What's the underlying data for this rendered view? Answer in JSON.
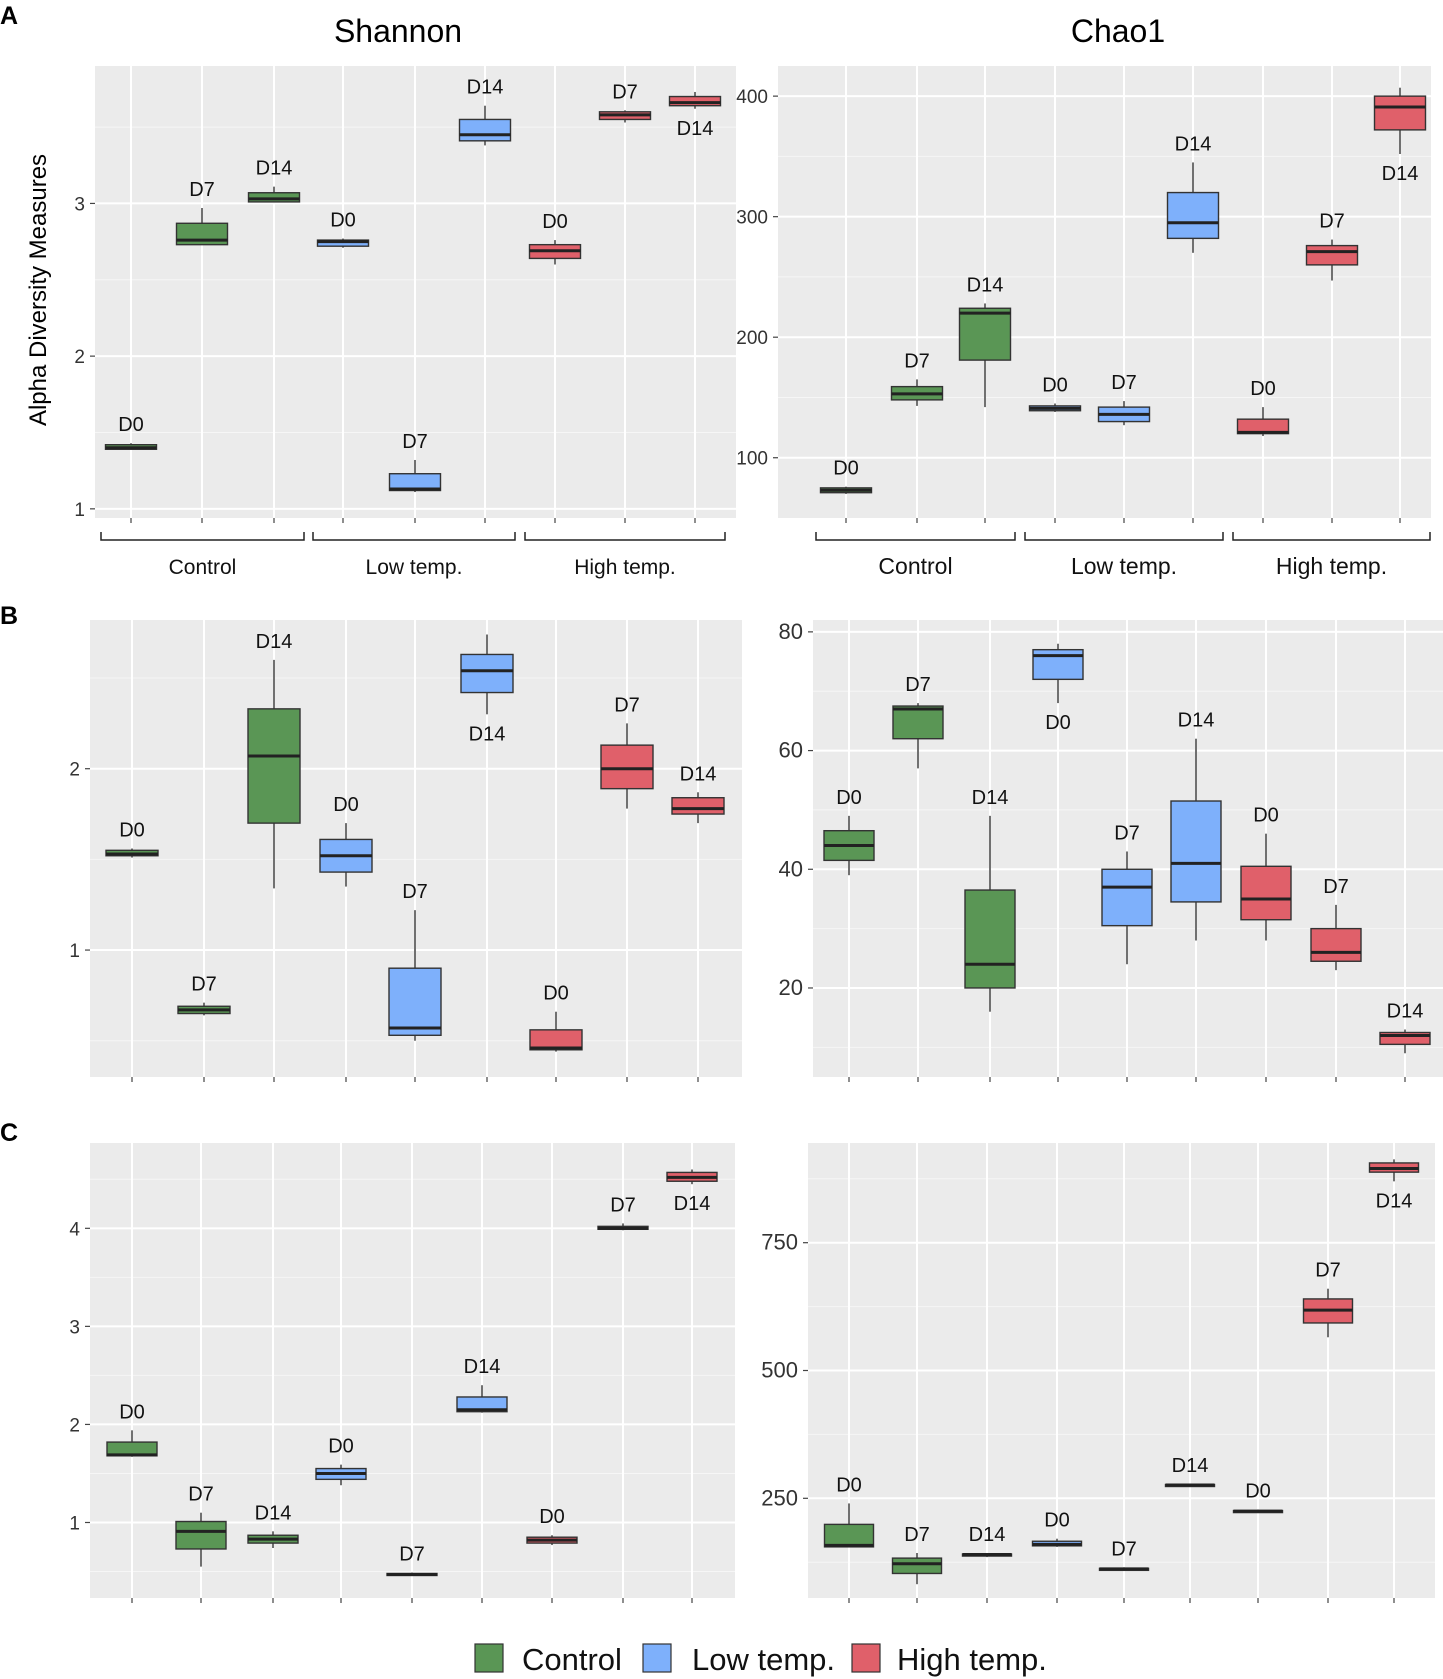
{
  "figure": {
    "panel_letters": [
      "A",
      "B",
      "C"
    ],
    "column_titles": {
      "shannon": "Shannon",
      "chao1": "Chao1"
    },
    "y_axis_label": "Alpha Diversity Measures",
    "group_labels": [
      "Control",
      "Low temp.",
      "High temp."
    ],
    "legend": [
      {
        "label": "Control",
        "color": "#5a9655"
      },
      {
        "label": "Low temp.",
        "color": "#7eb0fb"
      },
      {
        "label": "High temp.",
        "color": "#e0606a"
      }
    ]
  },
  "chart_data": [
    {
      "id": "A_shannon",
      "panel": "A",
      "type": "box",
      "title": "Shannon",
      "ylabel": "Alpha Diversity Measures",
      "ylim": [
        0.94,
        3.9
      ],
      "yticks": [
        1,
        2,
        3
      ],
      "grid": true,
      "group_labels": [
        "Control",
        "Low temp.",
        "High temp."
      ],
      "boxes": [
        {
          "label": "D0",
          "group": "Control",
          "min": 1.39,
          "q1": 1.39,
          "median": 1.4,
          "q3": 1.42,
          "max": 1.43,
          "label_pos": "above"
        },
        {
          "label": "D7",
          "group": "Control",
          "min": 2.73,
          "q1": 2.73,
          "median": 2.76,
          "q3": 2.87,
          "max": 2.97,
          "label_pos": "above"
        },
        {
          "label": "D14",
          "group": "Control",
          "min": 3.01,
          "q1": 3.01,
          "median": 3.03,
          "q3": 3.07,
          "max": 3.11,
          "label_pos": "above"
        },
        {
          "label": "D0",
          "group": "Low temp.",
          "min": 2.71,
          "q1": 2.72,
          "median": 2.75,
          "q3": 2.76,
          "max": 2.77,
          "label_pos": "above"
        },
        {
          "label": "D7",
          "group": "Low temp.",
          "min": 1.11,
          "q1": 1.12,
          "median": 1.13,
          "q3": 1.23,
          "max": 1.32,
          "label_pos": "above"
        },
        {
          "label": "D14",
          "group": "Low temp.",
          "min": 3.38,
          "q1": 3.41,
          "median": 3.45,
          "q3": 3.55,
          "max": 3.64,
          "label_pos": "above"
        },
        {
          "label": "D0",
          "group": "High temp.",
          "min": 2.6,
          "q1": 2.64,
          "median": 2.69,
          "q3": 2.73,
          "max": 2.76,
          "label_pos": "above"
        },
        {
          "label": "D7",
          "group": "High temp.",
          "min": 3.53,
          "q1": 3.55,
          "median": 3.58,
          "q3": 3.6,
          "max": 3.61,
          "label_pos": "above"
        },
        {
          "label": "D14",
          "group": "High temp.",
          "min": 3.62,
          "q1": 3.64,
          "median": 3.66,
          "q3": 3.7,
          "max": 3.73,
          "label_pos": "below"
        }
      ]
    },
    {
      "id": "A_chao1",
      "panel": "A",
      "type": "box",
      "title": "Chao1",
      "ylabel": "",
      "ylim": [
        50,
        425
      ],
      "yticks": [
        100,
        200,
        300,
        400
      ],
      "grid": true,
      "group_labels": [
        "Control",
        "Low temp.",
        "High temp."
      ],
      "boxes": [
        {
          "label": "D0",
          "group": "Control",
          "min": 70,
          "q1": 71,
          "median": 73,
          "q3": 75,
          "max": 76,
          "label_pos": "above"
        },
        {
          "label": "D7",
          "group": "Control",
          "min": 143,
          "q1": 148,
          "median": 153,
          "q3": 159,
          "max": 165,
          "label_pos": "above"
        },
        {
          "label": "D14",
          "group": "Control",
          "min": 142,
          "q1": 181,
          "median": 220,
          "q3": 224,
          "max": 228,
          "label_pos": "above"
        },
        {
          "label": "D0",
          "group": "Low temp.",
          "min": 138,
          "q1": 139,
          "median": 141,
          "q3": 143,
          "max": 145,
          "label_pos": "above"
        },
        {
          "label": "D7",
          "group": "Low temp.",
          "min": 127,
          "q1": 130,
          "median": 136,
          "q3": 142,
          "max": 147,
          "label_pos": "above"
        },
        {
          "label": "D14",
          "group": "Low temp.",
          "min": 270,
          "q1": 282,
          "median": 295,
          "q3": 320,
          "max": 345,
          "label_pos": "above"
        },
        {
          "label": "D0",
          "group": "High temp.",
          "min": 118,
          "q1": 120,
          "median": 121,
          "q3": 132,
          "max": 142,
          "label_pos": "above"
        },
        {
          "label": "D7",
          "group": "High temp.",
          "min": 247,
          "q1": 260,
          "median": 271,
          "q3": 276,
          "max": 281,
          "label_pos": "above"
        },
        {
          "label": "D14",
          "group": "High temp.",
          "min": 352,
          "q1": 372,
          "median": 391,
          "q3": 400,
          "max": 407,
          "label_pos": "below"
        }
      ]
    },
    {
      "id": "B_shannon",
      "panel": "B",
      "type": "box",
      "title": "",
      "ylabel": "",
      "ylim": [
        0.3,
        2.82
      ],
      "yticks": [
        1,
        2
      ],
      "grid": true,
      "boxes": [
        {
          "label": "D0",
          "group": "Control",
          "min": 1.51,
          "q1": 1.52,
          "median": 1.53,
          "q3": 1.55,
          "max": 1.56,
          "label_pos": "above"
        },
        {
          "label": "D7",
          "group": "Control",
          "min": 0.64,
          "q1": 0.65,
          "median": 0.67,
          "q3": 0.69,
          "max": 0.71,
          "label_pos": "above"
        },
        {
          "label": "D14",
          "group": "Control",
          "min": 1.34,
          "q1": 1.7,
          "median": 2.07,
          "q3": 2.33,
          "max": 2.6,
          "label_pos": "above"
        },
        {
          "label": "D0",
          "group": "Low temp.",
          "min": 1.35,
          "q1": 1.43,
          "median": 1.52,
          "q3": 1.61,
          "max": 1.7,
          "label_pos": "above"
        },
        {
          "label": "D7",
          "group": "Low temp.",
          "min": 0.5,
          "q1": 0.53,
          "median": 0.57,
          "q3": 0.9,
          "max": 1.22,
          "label_pos": "above"
        },
        {
          "label": "D14",
          "group": "Low temp.",
          "min": 2.3,
          "q1": 2.42,
          "median": 2.54,
          "q3": 2.63,
          "max": 2.74,
          "label_pos": "below"
        },
        {
          "label": "D0",
          "group": "High temp.",
          "min": 0.44,
          "q1": 0.45,
          "median": 0.46,
          "q3": 0.56,
          "max": 0.66,
          "label_pos": "above"
        },
        {
          "label": "D7",
          "group": "High temp.",
          "min": 1.78,
          "q1": 1.89,
          "median": 2.0,
          "q3": 2.13,
          "max": 2.25,
          "label_pos": "above"
        },
        {
          "label": "D14",
          "group": "High temp.",
          "min": 1.7,
          "q1": 1.75,
          "median": 1.78,
          "q3": 1.84,
          "max": 1.87,
          "label_pos": "above"
        }
      ]
    },
    {
      "id": "B_chao1",
      "panel": "B",
      "type": "box",
      "title": "",
      "ylabel": "",
      "ylim": [
        5,
        82
      ],
      "yticks": [
        20,
        40,
        60,
        80
      ],
      "grid": true,
      "boxes": [
        {
          "label": "D0",
          "group": "Control",
          "min": 39,
          "q1": 41.5,
          "median": 44,
          "q3": 46.5,
          "max": 49,
          "label_pos": "above"
        },
        {
          "label": "D7",
          "group": "Control",
          "min": 57,
          "q1": 62,
          "median": 67,
          "q3": 67.5,
          "max": 68,
          "label_pos": "above"
        },
        {
          "label": "D14",
          "group": "Control",
          "min": 16,
          "q1": 20,
          "median": 24,
          "q3": 36.5,
          "max": 49,
          "label_pos": "above"
        },
        {
          "label": "D0",
          "group": "Low temp.",
          "min": 68,
          "q1": 72,
          "median": 76,
          "q3": 77,
          "max": 78,
          "label_pos": "below"
        },
        {
          "label": "D7",
          "group": "Low temp.",
          "min": 24,
          "q1": 30.5,
          "median": 37,
          "q3": 40,
          "max": 43,
          "label_pos": "above"
        },
        {
          "label": "D14",
          "group": "Low temp.",
          "min": 28,
          "q1": 34.5,
          "median": 41,
          "q3": 51.5,
          "max": 62,
          "label_pos": "above"
        },
        {
          "label": "D0",
          "group": "High temp.",
          "min": 28,
          "q1": 31.5,
          "median": 35,
          "q3": 40.5,
          "max": 46,
          "label_pos": "above"
        },
        {
          "label": "D7",
          "group": "High temp.",
          "min": 23,
          "q1": 24.5,
          "median": 26,
          "q3": 30,
          "max": 34,
          "label_pos": "above"
        },
        {
          "label": "D14",
          "group": "High temp.",
          "min": 9,
          "q1": 10.5,
          "median": 12,
          "q3": 12.5,
          "max": 13,
          "label_pos": "above"
        }
      ]
    },
    {
      "id": "C_shannon",
      "panel": "C",
      "type": "box",
      "title": "",
      "ylabel": "",
      "ylim": [
        0.23,
        4.87
      ],
      "yticks": [
        1,
        2,
        3,
        4
      ],
      "grid": true,
      "boxes": [
        {
          "label": "D0",
          "group": "Control",
          "min": 1.67,
          "q1": 1.68,
          "median": 1.69,
          "q3": 1.82,
          "max": 1.94,
          "label_pos": "above"
        },
        {
          "label": "D7",
          "group": "Control",
          "min": 0.55,
          "q1": 0.73,
          "median": 0.91,
          "q3": 1.01,
          "max": 1.1,
          "label_pos": "above"
        },
        {
          "label": "D14",
          "group": "Control",
          "min": 0.74,
          "q1": 0.79,
          "median": 0.83,
          "q3": 0.87,
          "max": 0.91,
          "label_pos": "above"
        },
        {
          "label": "D0",
          "group": "Low temp.",
          "min": 1.38,
          "q1": 1.44,
          "median": 1.5,
          "q3": 1.55,
          "max": 1.59,
          "label_pos": "above"
        },
        {
          "label": "D7",
          "group": "Low temp.",
          "min": 0.46,
          "q1": 0.46,
          "median": 0.47,
          "q3": 0.48,
          "max": 0.49,
          "label_pos": "above"
        },
        {
          "label": "D14",
          "group": "Low temp.",
          "min": 2.12,
          "q1": 2.13,
          "median": 2.15,
          "q3": 2.28,
          "max": 2.4,
          "label_pos": "above"
        },
        {
          "label": "D0",
          "group": "High temp.",
          "min": 0.77,
          "q1": 0.79,
          "median": 0.82,
          "q3": 0.85,
          "max": 0.87,
          "label_pos": "above"
        },
        {
          "label": "D7",
          "group": "High temp.",
          "min": 3.98,
          "q1": 3.99,
          "median": 4.0,
          "q3": 4.02,
          "max": 4.05,
          "label_pos": "above"
        },
        {
          "label": "D14",
          "group": "High temp.",
          "min": 4.45,
          "q1": 4.48,
          "median": 4.52,
          "q3": 4.57,
          "max": 4.6,
          "label_pos": "below"
        }
      ]
    },
    {
      "id": "C_chao1",
      "panel": "C",
      "type": "box",
      "title": "",
      "ylabel": "",
      "ylim": [
        55,
        945
      ],
      "yticks": [
        250,
        500,
        750
      ],
      "grid": true,
      "boxes": [
        {
          "label": "D0",
          "group": "Control",
          "min": 155,
          "q1": 155,
          "median": 158,
          "q3": 199,
          "max": 240,
          "label_pos": "above"
        },
        {
          "label": "D7",
          "group": "Control",
          "min": 82,
          "q1": 103,
          "median": 122,
          "q3": 133,
          "max": 143,
          "label_pos": "above"
        },
        {
          "label": "D14",
          "group": "Control",
          "min": 135,
          "q1": 137,
          "median": 140,
          "q3": 141,
          "max": 143,
          "label_pos": "above"
        },
        {
          "label": "D0",
          "group": "Low temp.",
          "min": 155,
          "q1": 157,
          "median": 160,
          "q3": 166,
          "max": 171,
          "label_pos": "above"
        },
        {
          "label": "D7",
          "group": "Low temp.",
          "min": 110,
          "q1": 110,
          "median": 112,
          "q3": 113,
          "max": 115,
          "label_pos": "above"
        },
        {
          "label": "D14",
          "group": "Low temp.",
          "min": 273,
          "q1": 274,
          "median": 276,
          "q3": 277,
          "max": 278,
          "label_pos": "above"
        },
        {
          "label": "D0",
          "group": "High temp.",
          "min": 222,
          "q1": 223,
          "median": 225,
          "q3": 226,
          "max": 228,
          "label_pos": "above"
        },
        {
          "label": "D7",
          "group": "High temp.",
          "min": 565,
          "q1": 593,
          "median": 618,
          "q3": 640,
          "max": 660,
          "label_pos": "above"
        },
        {
          "label": "D14",
          "group": "High temp.",
          "min": 870,
          "q1": 888,
          "median": 895,
          "q3": 906,
          "max": 913,
          "label_pos": "below"
        }
      ]
    }
  ]
}
